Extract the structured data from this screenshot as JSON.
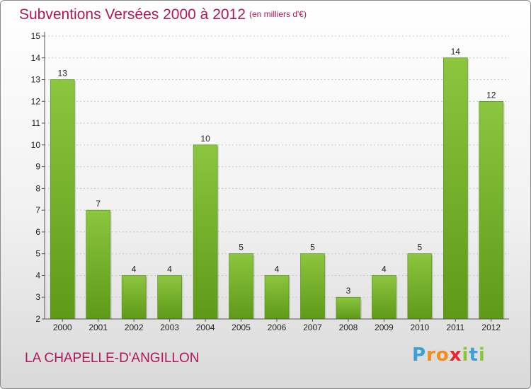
{
  "page": {
    "title": "Subventions Versées 2000 à 2012",
    "subtitle": "(en milliers d'€)",
    "commune": "LA CHAPELLE-D'ANGILLON",
    "logo": {
      "letters": [
        "P",
        "r",
        "o",
        "x",
        "i",
        "t",
        "i"
      ],
      "colors": [
        "#3aa0d8",
        "#f28c1a",
        "#f28c1a",
        "#e8262d",
        "#8cc63f",
        "#3aa0d8",
        "#8cc63f"
      ]
    }
  },
  "chart_data": {
    "type": "bar",
    "title": "Subventions Versées 2000 à 2012",
    "subtitle": "(en milliers d'€)",
    "xlabel": "",
    "ylabel": "",
    "categories": [
      "2000",
      "2001",
      "2002",
      "2003",
      "2004",
      "2005",
      "2006",
      "2007",
      "2008",
      "2009",
      "2010",
      "2011",
      "2012"
    ],
    "values": [
      13,
      7,
      4,
      4,
      10,
      5,
      4,
      5,
      3,
      4,
      5,
      14,
      12
    ],
    "value_labels": [
      "13",
      "7",
      "4",
      "4",
      "10",
      "5",
      "4",
      "5",
      "3",
      "4",
      "5",
      "14",
      "12"
    ],
    "ylim": [
      2,
      15
    ],
    "yticks": [
      2,
      3,
      4,
      5,
      6,
      7,
      8,
      9,
      10,
      11,
      12,
      13,
      14,
      15
    ],
    "ytick_labels": [
      "2",
      "3",
      "4",
      "5",
      "6",
      "7",
      "8",
      "9",
      "10",
      "11",
      "12",
      "13",
      "14",
      "15"
    ],
    "grid": "horizontal",
    "bar_color": "#8cc63f",
    "bar_color_dark": "#5e9a18"
  }
}
